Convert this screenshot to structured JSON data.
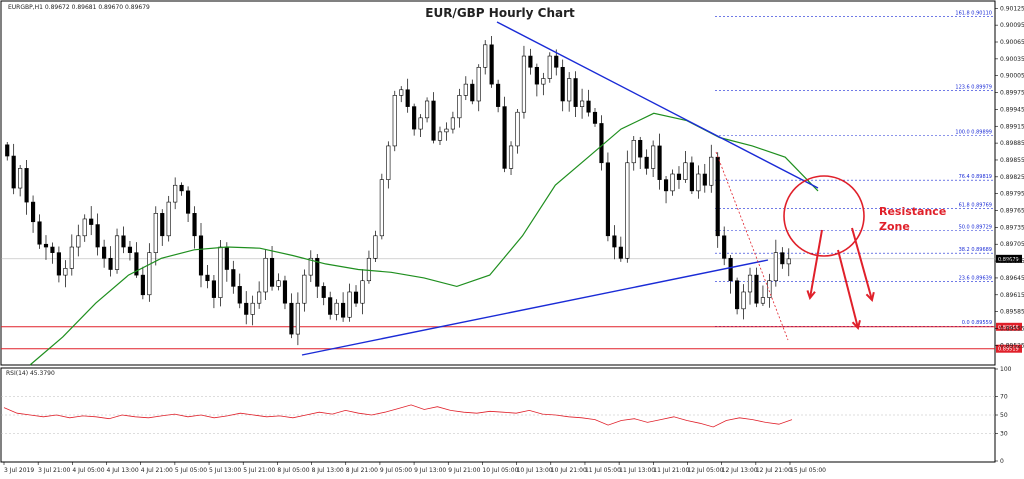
{
  "chart_data": {
    "type": "candlestick",
    "symbol_header": "EURGBP,H1  0.89672 0.89681 0.89670 0.89679",
    "title": "EUR/GBP Hourly Chart",
    "ylim": [
      0.8949,
      0.90138
    ],
    "y_ticks": [
      "0.90125",
      "0.90095",
      "0.90065",
      "0.90035",
      "0.90005",
      "0.89975",
      "0.89945",
      "0.89915",
      "0.89885",
      "0.89855",
      "0.89825",
      "0.89795",
      "0.89765",
      "0.89735",
      "0.89705",
      "0.89675",
      "0.89645",
      "0.89615",
      "0.89585",
      "0.89555",
      "0.89525"
    ],
    "x_ticks": [
      "3 Jul 2019",
      "3 Jul 21:00",
      "4 Jul 05:00",
      "4 Jul 13:00",
      "4 Jul 21:00",
      "5 Jul 05:00",
      "5 Jul 13:00",
      "5 Jul 21:00",
      "8 Jul 05:00",
      "8 Jul 13:00",
      "8 Jul 21:00",
      "9 Jul 05:00",
      "9 Jul 13:00",
      "9 Jul 21:00",
      "10 Jul 05:00",
      "10 Jul 13:00",
      "10 Jul 21:00",
      "11 Jul 05:00",
      "11 Jul 13:00",
      "11 Jul 21:00",
      "12 Jul 05:00",
      "12 Jul 13:00",
      "12 Jul 21:00",
      "15 Jul 05:00"
    ],
    "current_price": 0.89679,
    "fib_levels": [
      {
        "label": "161.8 0.90110",
        "value": 0.9011
      },
      {
        "label": "123.6 0.89979",
        "value": 0.89979
      },
      {
        "label": "100.0 0.89899",
        "value": 0.89899
      },
      {
        "label": "76.4 0.89819",
        "value": 0.89819
      },
      {
        "label": "61.8 0.89769",
        "value": 0.89769
      },
      {
        "label": "50.0 0.89729",
        "value": 0.89729
      },
      {
        "label": "38.2 0.89689",
        "value": 0.89689
      },
      {
        "label": "23.6 0.89639",
        "value": 0.89639
      },
      {
        "label": "0.0 0.89559",
        "value": 0.89559
      }
    ],
    "support_lines": [
      {
        "label": "0.89558",
        "value": 0.89558
      },
      {
        "label": "0.89519",
        "value": 0.89519
      }
    ],
    "closes": [
      0.89862,
      0.89805,
      0.8984,
      0.8978,
      0.89745,
      0.89705,
      0.897,
      0.8969,
      0.8965,
      0.89662,
      0.897,
      0.8972,
      0.8975,
      0.8974,
      0.897,
      0.8968,
      0.8966,
      0.8972,
      0.897,
      0.8969,
      0.8965,
      0.89615,
      0.8969,
      0.8976,
      0.8972,
      0.8978,
      0.8981,
      0.898,
      0.8976,
      0.8972,
      0.8965,
      0.8964,
      0.8961,
      0.897,
      0.8966,
      0.8963,
      0.896,
      0.8958,
      0.896,
      0.8962,
      0.8968,
      0.8963,
      0.8964,
      0.896,
      0.89545,
      0.896,
      0.8965,
      0.8968,
      0.8963,
      0.8961,
      0.8958,
      0.896,
      0.89575,
      0.8962,
      0.896,
      0.8964,
      0.8968,
      0.8972,
      0.8982,
      0.8988,
      0.8997,
      0.8998,
      0.8995,
      0.8991,
      0.8993,
      0.8996,
      0.8989,
      0.89905,
      0.8991,
      0.8993,
      0.8997,
      0.8999,
      0.8996,
      0.9002,
      0.9006,
      0.8999,
      0.8995,
      0.8984,
      0.8988,
      0.8994,
      0.9004,
      0.9002,
      0.8999,
      0.9,
      0.9004,
      0.9002,
      0.8996,
      0.9,
      0.8995,
      0.8996,
      0.8994,
      0.8992,
      0.8985,
      0.8972,
      0.897,
      0.8968,
      0.8985,
      0.8989,
      0.8986,
      0.8984,
      0.8988,
      0.8982,
      0.898,
      0.8983,
      0.8982,
      0.8985,
      0.898,
      0.8983,
      0.8981,
      0.8986,
      0.8972,
      0.8968,
      0.8964,
      0.8959,
      0.8962,
      0.8965,
      0.896,
      0.8961,
      0.8964,
      0.8969,
      0.8967,
      0.89679
    ],
    "ma_y": [
      0.8949,
      0.8954,
      0.896,
      0.8965,
      0.8968,
      0.89695,
      0.897,
      0.89698,
      0.89685,
      0.8967,
      0.8966,
      0.89655,
      0.89645,
      0.8963,
      0.8965,
      0.8972,
      0.8981,
      0.8986,
      0.8991,
      0.89938,
      0.89925,
      0.89895,
      0.8988,
      0.8986,
      0.898
    ],
    "rsi": {
      "label": "RSI(14) 45.3790",
      "ylim": [
        0,
        100
      ],
      "ticks": [
        "100",
        "70",
        "50",
        "30",
        "0"
      ],
      "values": [
        58,
        52,
        50,
        48,
        50,
        47,
        49,
        48,
        46,
        50,
        48,
        47,
        49,
        51,
        48,
        50,
        47,
        49,
        52,
        50,
        48,
        49,
        47,
        50,
        53,
        51,
        55,
        52,
        50,
        53,
        57,
        61,
        56,
        59,
        55,
        53,
        52,
        54,
        53,
        52,
        55,
        51,
        50,
        48,
        47,
        45,
        39,
        44,
        46,
        42,
        45,
        48,
        44,
        41,
        37,
        44,
        47,
        45,
        42,
        40,
        45
      ]
    }
  },
  "annotations": {
    "resistance_label_1": "Resistance",
    "resistance_label_2": "Zone"
  },
  "colors": {
    "candle_up": "#ffffff",
    "candle_down": "#000000",
    "trendline": "#1a2bd6",
    "ma": "#1f8f1f",
    "fib": "#1a2bd6",
    "support": "#e0202a",
    "annotation": "#e0202a",
    "rsi": "#e0202a",
    "price_line": "#aaaaaa"
  }
}
